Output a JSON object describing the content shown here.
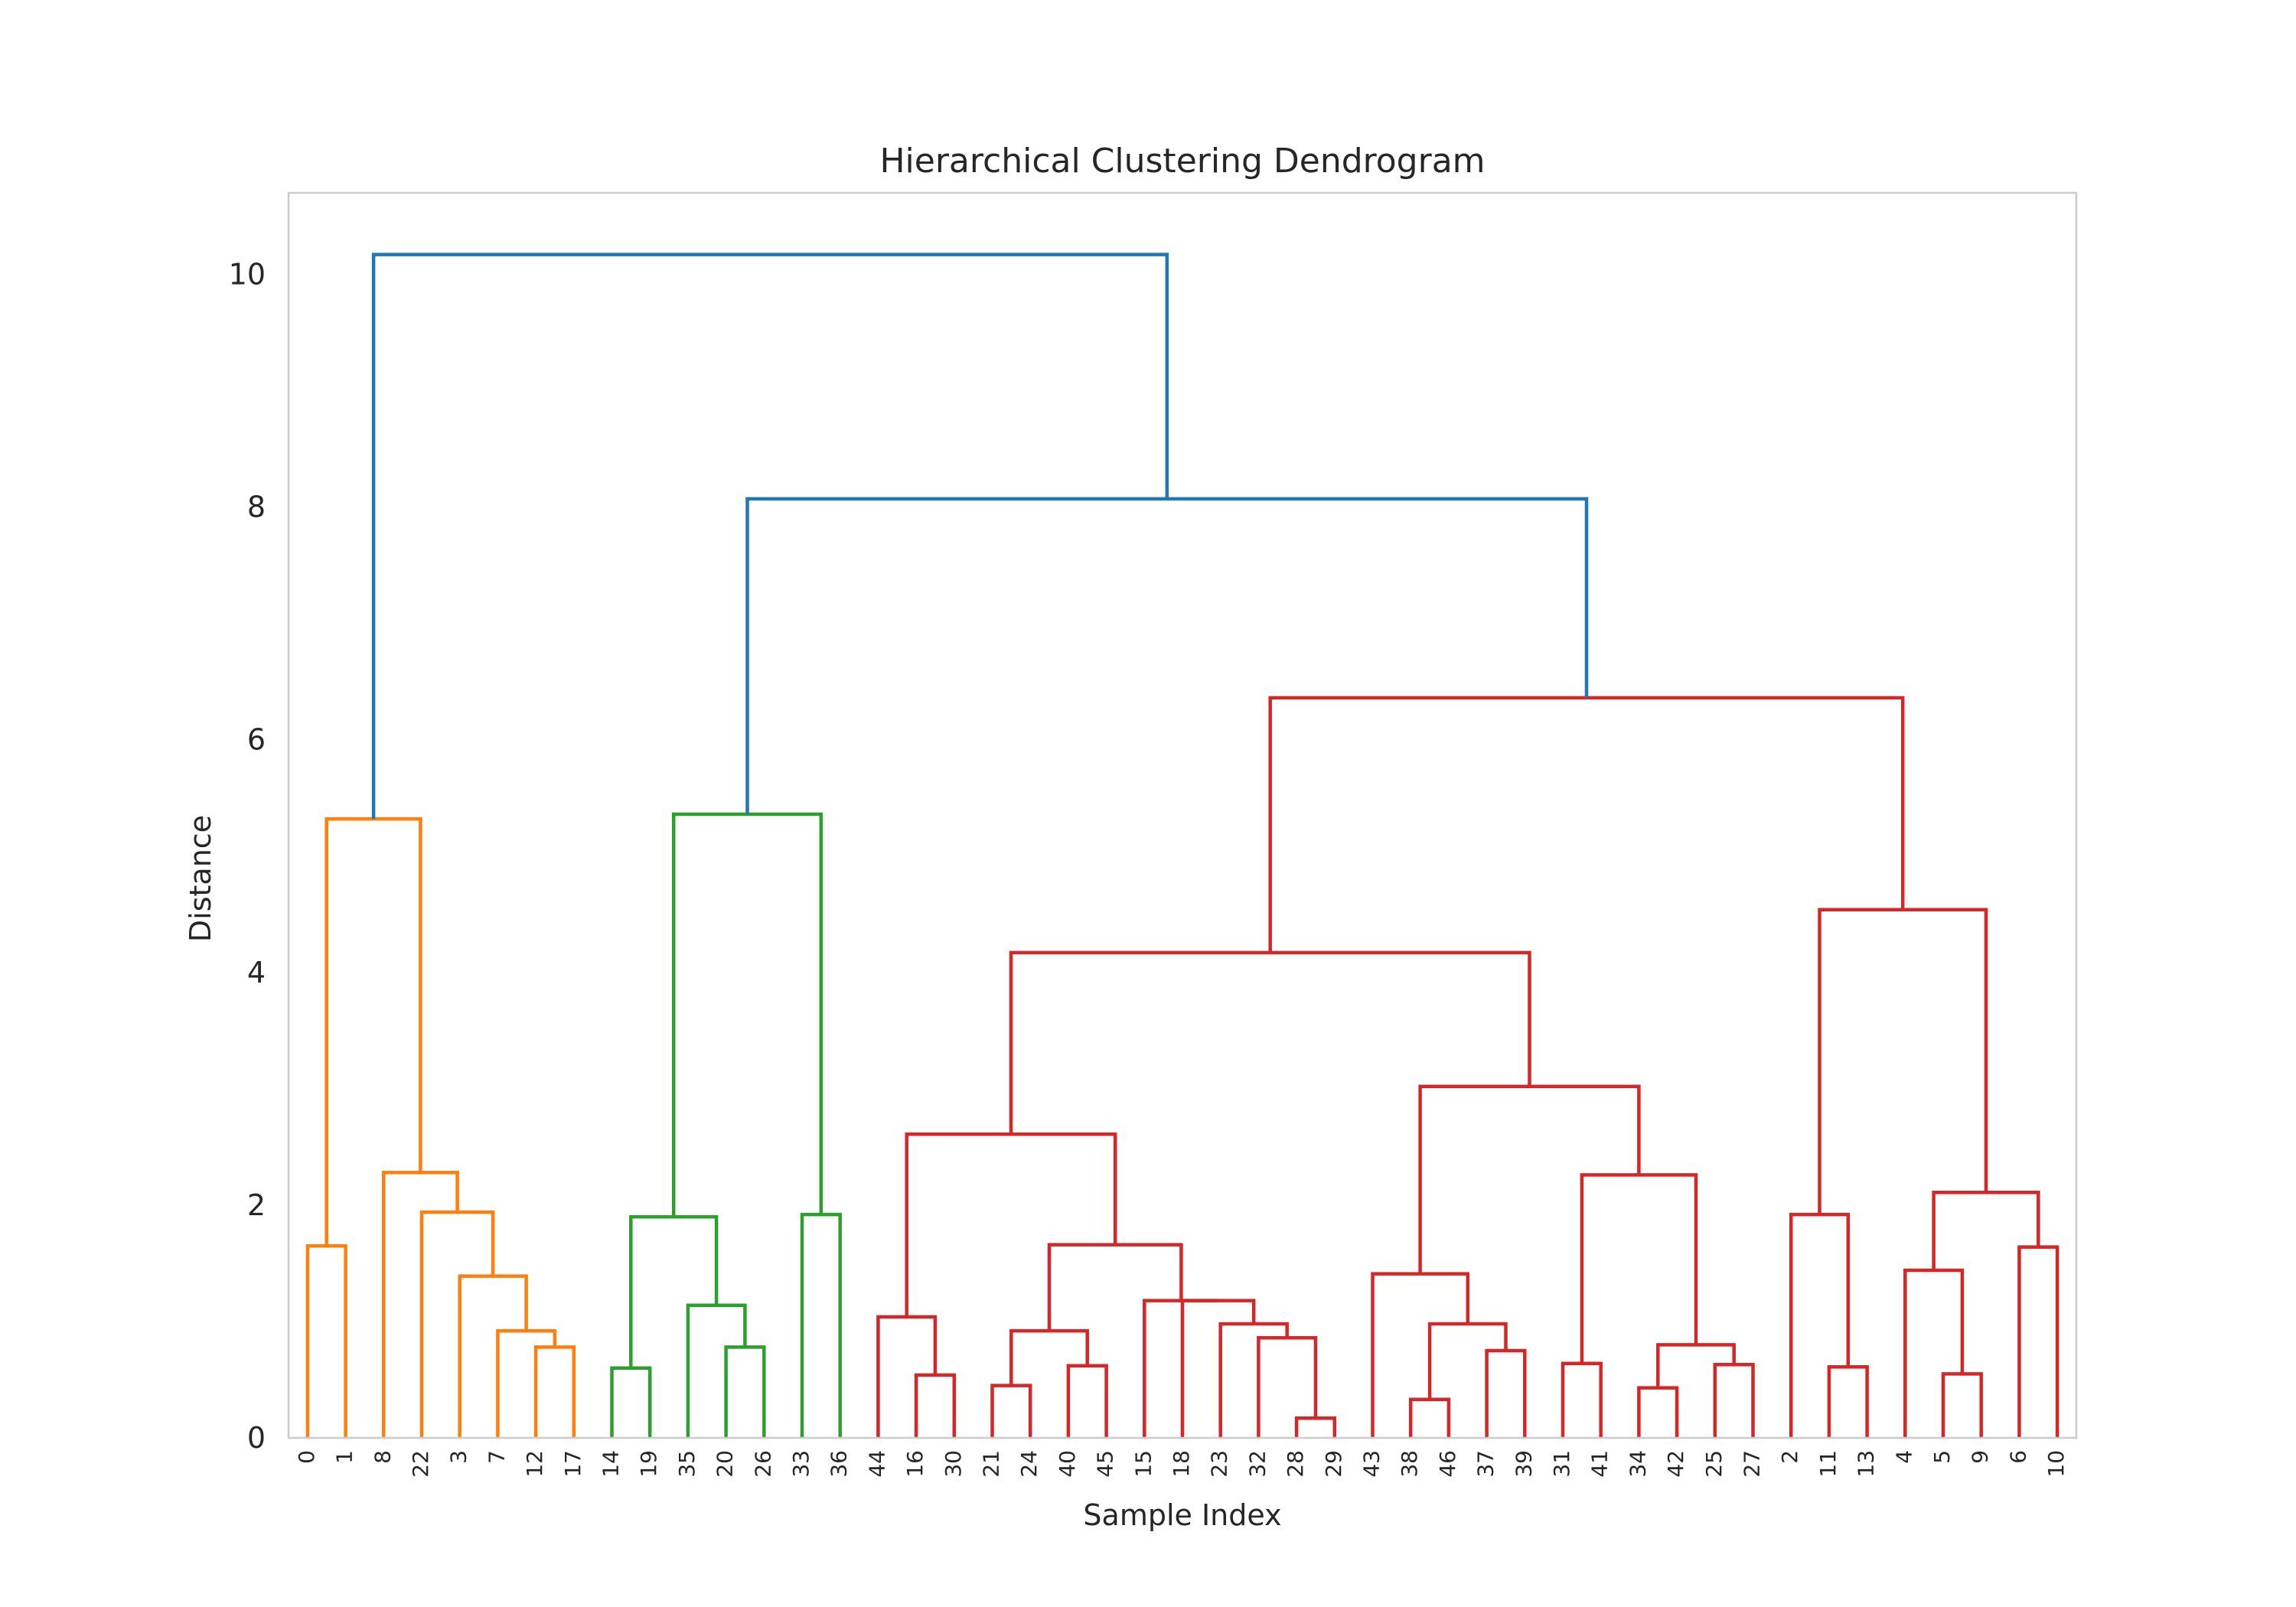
{
  "chart_data": {
    "type": "dendrogram",
    "title": "Hierarchical Clustering Dendrogram",
    "xlabel": "Sample Index",
    "ylabel": "Distance",
    "ylim": [
      0,
      10.7
    ],
    "yticks": [
      0,
      2,
      4,
      6,
      8,
      10
    ],
    "grid": false,
    "leaves": [
      "0",
      "1",
      "8",
      "22",
      "3",
      "7",
      "12",
      "17",
      "14",
      "19",
      "35",
      "20",
      "26",
      "33",
      "36",
      "44",
      "16",
      "30",
      "21",
      "24",
      "40",
      "45",
      "15",
      "18",
      "23",
      "32",
      "28",
      "29",
      "43",
      "38",
      "46",
      "37",
      "39",
      "31",
      "41",
      "34",
      "42",
      "25",
      "27",
      "2",
      "11",
      "13",
      "4",
      "5",
      "9",
      "6",
      "10"
    ],
    "colors": {
      "orange": "#ff7f0e",
      "green": "#2ca02c",
      "red": "#d62728",
      "blue": "#1f77b4"
    },
    "merges": [
      {
        "id": "m1",
        "left": "L0",
        "right": "L1",
        "height": 1.65,
        "color": "orange"
      },
      {
        "id": "m2",
        "left": "L12",
        "right": "L17",
        "height": 0.78,
        "color": "orange"
      },
      {
        "id": "m3",
        "left": "L7",
        "right": "m2",
        "height": 0.92,
        "color": "orange"
      },
      {
        "id": "m4",
        "left": "L3",
        "right": "m3",
        "height": 1.39,
        "color": "orange"
      },
      {
        "id": "m5",
        "left": "L22",
        "right": "m4",
        "height": 1.94,
        "color": "orange"
      },
      {
        "id": "m6",
        "left": "L8",
        "right": "m5",
        "height": 2.28,
        "color": "orange"
      },
      {
        "id": "m7",
        "left": "m1",
        "right": "m6",
        "height": 5.32,
        "color": "orange"
      },
      {
        "id": "m8",
        "left": "L14",
        "right": "L19",
        "height": 0.6,
        "color": "green"
      },
      {
        "id": "m9",
        "left": "L20",
        "right": "L26",
        "height": 0.78,
        "color": "green"
      },
      {
        "id": "m10",
        "left": "L35",
        "right": "m9",
        "height": 1.14,
        "color": "green"
      },
      {
        "id": "m11",
        "left": "m8",
        "right": "m10",
        "height": 1.9,
        "color": "green"
      },
      {
        "id": "m12",
        "left": "L33",
        "right": "L36",
        "height": 1.92,
        "color": "green"
      },
      {
        "id": "m13",
        "left": "m11",
        "right": "m12",
        "height": 5.36,
        "color": "green"
      },
      {
        "id": "m14",
        "left": "L16",
        "right": "L30",
        "height": 0.54,
        "color": "red"
      },
      {
        "id": "m15",
        "left": "L44",
        "right": "m14",
        "height": 1.04,
        "color": "red"
      },
      {
        "id": "m16",
        "left": "L21",
        "right": "L24",
        "height": 0.45,
        "color": "red"
      },
      {
        "id": "m17",
        "left": "L40",
        "right": "L45",
        "height": 0.62,
        "color": "red"
      },
      {
        "id": "m18",
        "left": "m16",
        "right": "m17",
        "height": 0.92,
        "color": "red"
      },
      {
        "id": "m19",
        "left": "L28",
        "right": "L29",
        "height": 0.17,
        "color": "red"
      },
      {
        "id": "m20",
        "left": "L32",
        "right": "m19",
        "height": 0.86,
        "color": "red"
      },
      {
        "id": "m21",
        "left": "L23",
        "right": "m20",
        "height": 0.98,
        "color": "red"
      },
      {
        "id": "m22",
        "left": "L18",
        "right": "m21",
        "height": 1.18,
        "color": "red"
      },
      {
        "id": "m23",
        "left": "L15",
        "right": "m22",
        "height": 1.18,
        "color": "red"
      },
      {
        "id": "m24",
        "left": "m18",
        "right": "m23",
        "height": 1.66,
        "color": "red"
      },
      {
        "id": "m25",
        "left": "m15",
        "right": "m24",
        "height": 2.61,
        "color": "red"
      },
      {
        "id": "m26",
        "left": "L38",
        "right": "L46",
        "height": 0.33,
        "color": "red"
      },
      {
        "id": "m27",
        "left": "L37",
        "right": "L39",
        "height": 0.75,
        "color": "red"
      },
      {
        "id": "m28",
        "left": "m26",
        "right": "m27",
        "height": 0.98,
        "color": "red"
      },
      {
        "id": "m29",
        "left": "L43",
        "right": "m28",
        "height": 1.41,
        "color": "red"
      },
      {
        "id": "m30",
        "left": "L31",
        "right": "L41",
        "height": 0.64,
        "color": "red"
      },
      {
        "id": "m31",
        "left": "L34",
        "right": "L42",
        "height": 0.43,
        "color": "red"
      },
      {
        "id": "m32",
        "left": "L25",
        "right": "L27",
        "height": 0.63,
        "color": "red"
      },
      {
        "id": "m33",
        "left": "m31",
        "right": "m32",
        "height": 0.8,
        "color": "red"
      },
      {
        "id": "m34",
        "left": "m30",
        "right": "m33",
        "height": 2.26,
        "color": "red"
      },
      {
        "id": "m35",
        "left": "m29",
        "right": "m34",
        "height": 3.02,
        "color": "red"
      },
      {
        "id": "m36",
        "left": "m25",
        "right": "m35",
        "height": 4.17,
        "color": "red"
      },
      {
        "id": "m37",
        "left": "L11",
        "right": "L13",
        "height": 0.61,
        "color": "red"
      },
      {
        "id": "m38",
        "left": "L2",
        "right": "m37",
        "height": 1.92,
        "color": "red"
      },
      {
        "id": "m39",
        "left": "L5",
        "right": "L9",
        "height": 0.55,
        "color": "red"
      },
      {
        "id": "m40",
        "left": "L4",
        "right": "m39",
        "height": 1.44,
        "color": "red"
      },
      {
        "id": "m41",
        "left": "L6",
        "right": "L10",
        "height": 1.64,
        "color": "red"
      },
      {
        "id": "m42",
        "left": "m40",
        "right": "m41",
        "height": 2.11,
        "color": "red"
      },
      {
        "id": "m43",
        "left": "m38",
        "right": "m42",
        "height": 4.54,
        "color": "red"
      },
      {
        "id": "m44",
        "left": "m36",
        "right": "m43",
        "height": 6.36,
        "color": "red"
      },
      {
        "id": "m45",
        "left": "m13",
        "right": "m44",
        "height": 8.07,
        "color": "blue"
      },
      {
        "id": "m46",
        "left": "m7",
        "right": "m45",
        "height": 10.17,
        "color": "blue"
      }
    ]
  }
}
